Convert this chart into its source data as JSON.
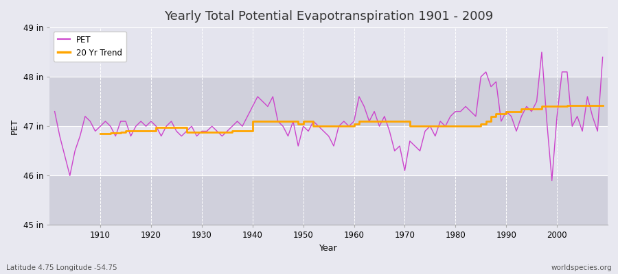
{
  "title": "Yearly Total Potential Evapotranspiration 1901 - 2009",
  "xlabel": "Year",
  "ylabel": "PET",
  "footnote_left": "Latitude 4.75 Longitude -54.75",
  "footnote_right": "worldspecies.org",
  "ylim": [
    45,
    49
  ],
  "yticks": [
    45,
    46,
    47,
    48,
    49
  ],
  "ytick_labels": [
    "45 in",
    "46 in",
    "47 in",
    "48 in",
    "49 in"
  ],
  "xticks": [
    1910,
    1920,
    1930,
    1940,
    1950,
    1960,
    1970,
    1980,
    1990,
    2000
  ],
  "pet_color": "#CC44CC",
  "trend_color": "#FFA500",
  "bg_color": "#E8E8F0",
  "plot_bg_color": "#DCDCE8",
  "band_light": "#E4E4EE",
  "band_dark": "#D0D0DC",
  "grid_color": "#FFFFFF",
  "years": [
    1901,
    1902,
    1903,
    1904,
    1905,
    1906,
    1907,
    1908,
    1909,
    1910,
    1911,
    1912,
    1913,
    1914,
    1915,
    1916,
    1917,
    1918,
    1919,
    1920,
    1921,
    1922,
    1923,
    1924,
    1925,
    1926,
    1927,
    1928,
    1929,
    1930,
    1931,
    1932,
    1933,
    1934,
    1935,
    1936,
    1937,
    1938,
    1939,
    1940,
    1941,
    1942,
    1943,
    1944,
    1945,
    1946,
    1947,
    1948,
    1949,
    1950,
    1951,
    1952,
    1953,
    1954,
    1955,
    1956,
    1957,
    1958,
    1959,
    1960,
    1961,
    1962,
    1963,
    1964,
    1965,
    1966,
    1967,
    1968,
    1969,
    1970,
    1971,
    1972,
    1973,
    1974,
    1975,
    1976,
    1977,
    1978,
    1979,
    1980,
    1981,
    1982,
    1983,
    1984,
    1985,
    1986,
    1987,
    1988,
    1989,
    1990,
    1991,
    1992,
    1993,
    1994,
    1995,
    1996,
    1997,
    1998,
    1999,
    2000,
    2001,
    2002,
    2003,
    2004,
    2005,
    2006,
    2007,
    2008,
    2009
  ],
  "pet_values": [
    47.3,
    46.8,
    46.4,
    46.0,
    46.5,
    46.8,
    47.2,
    47.1,
    46.9,
    47.0,
    47.1,
    47.0,
    46.8,
    47.1,
    47.1,
    46.8,
    47.0,
    47.1,
    47.0,
    47.1,
    47.0,
    46.8,
    47.0,
    47.1,
    46.9,
    46.8,
    46.9,
    47.0,
    46.8,
    46.9,
    46.9,
    47.0,
    46.9,
    46.8,
    46.9,
    47.0,
    47.1,
    47.0,
    47.2,
    47.4,
    47.6,
    47.5,
    47.4,
    47.6,
    47.1,
    47.0,
    46.8,
    47.1,
    46.6,
    47.0,
    46.9,
    47.1,
    47.0,
    46.9,
    46.8,
    46.6,
    47.0,
    47.1,
    47.0,
    47.1,
    47.6,
    47.4,
    47.1,
    47.3,
    47.0,
    47.2,
    46.9,
    46.5,
    46.6,
    46.1,
    46.7,
    46.6,
    46.5,
    46.9,
    47.0,
    46.8,
    47.1,
    47.0,
    47.2,
    47.3,
    47.3,
    47.4,
    47.3,
    47.2,
    48.0,
    48.1,
    47.8,
    47.9,
    47.1,
    47.3,
    47.2,
    46.9,
    47.2,
    47.4,
    47.3,
    47.5,
    48.5,
    47.1,
    45.9,
    47.2,
    48.1,
    48.1,
    47.0,
    47.2,
    46.9,
    47.6,
    47.2,
    46.9,
    48.4
  ],
  "trend_values": [
    null,
    null,
    null,
    null,
    null,
    null,
    null,
    null,
    null,
    46.85,
    46.85,
    46.87,
    46.87,
    46.88,
    46.9,
    46.9,
    46.9,
    46.9,
    46.9,
    46.9,
    46.97,
    46.97,
    46.97,
    46.97,
    46.97,
    46.97,
    46.88,
    46.88,
    46.88,
    46.88,
    46.88,
    46.88,
    46.88,
    46.88,
    46.88,
    46.9,
    46.9,
    46.9,
    46.9,
    47.1,
    47.1,
    47.1,
    47.1,
    47.1,
    47.1,
    47.1,
    47.1,
    47.1,
    47.05,
    47.1,
    47.1,
    47.0,
    47.0,
    47.0,
    47.0,
    47.0,
    47.0,
    47.0,
    47.0,
    47.05,
    47.1,
    47.1,
    47.1,
    47.1,
    47.1,
    47.1,
    47.1,
    47.1,
    47.1,
    47.1,
    47.0,
    47.0,
    47.0,
    47.0,
    47.0,
    47.0,
    47.0,
    47.0,
    47.0,
    47.0,
    47.0,
    47.0,
    47.0,
    47.0,
    47.05,
    47.1,
    47.2,
    47.25,
    47.25,
    47.3,
    47.3,
    47.3,
    47.35,
    47.35,
    47.35,
    47.35,
    47.4,
    47.4,
    47.4,
    47.4,
    47.4,
    47.42,
    47.42,
    47.42,
    47.42,
    47.42,
    47.42,
    47.42,
    47.42
  ],
  "legend_pet_label": "PET",
  "legend_trend_label": "20 Yr Trend",
  "title_fontsize": 13,
  "axis_fontsize": 9,
  "tick_fontsize": 8.5
}
